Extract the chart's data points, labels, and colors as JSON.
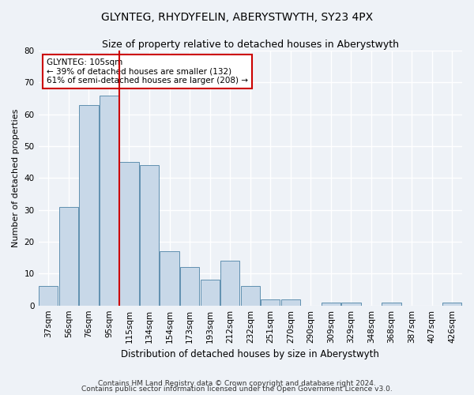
{
  "title": "GLYNTEG, RHYDYFELIN, ABERYSTWYTH, SY23 4PX",
  "subtitle": "Size of property relative to detached houses in Aberystwyth",
  "xlabel": "Distribution of detached houses by size in Aberystwyth",
  "ylabel": "Number of detached properties",
  "footnote1": "Contains HM Land Registry data © Crown copyright and database right 2024.",
  "footnote2": "Contains public sector information licensed under the Open Government Licence v3.0.",
  "categories": [
    "37sqm",
    "56sqm",
    "76sqm",
    "95sqm",
    "115sqm",
    "134sqm",
    "154sqm",
    "173sqm",
    "193sqm",
    "212sqm",
    "232sqm",
    "251sqm",
    "270sqm",
    "290sqm",
    "309sqm",
    "329sqm",
    "348sqm",
    "368sqm",
    "387sqm",
    "407sqm",
    "426sqm"
  ],
  "values": [
    6,
    31,
    63,
    66,
    45,
    44,
    17,
    12,
    8,
    14,
    6,
    2,
    2,
    0,
    1,
    1,
    0,
    1,
    0,
    0,
    1
  ],
  "bar_color": "#c8d8e8",
  "bar_edge_color": "#6090b0",
  "marker_label": "GLYNTEG: 105sqm",
  "marker_line1": "← 39% of detached houses are smaller (132)",
  "marker_line2": "61% of semi-detached houses are larger (208) →",
  "annotation_box_color": "#ffffff",
  "annotation_box_edge": "#cc0000",
  "annotation_text_color": "#000000",
  "marker_line_color": "#cc0000",
  "ylim": [
    0,
    80
  ],
  "yticks": [
    0,
    10,
    20,
    30,
    40,
    50,
    60,
    70,
    80
  ],
  "bg_color": "#eef2f7",
  "grid_color": "#ffffff",
  "title_fontsize": 10,
  "subtitle_fontsize": 9,
  "ylabel_fontsize": 8,
  "xlabel_fontsize": 8.5,
  "tick_fontsize": 7.5,
  "footnote_fontsize": 6.5
}
